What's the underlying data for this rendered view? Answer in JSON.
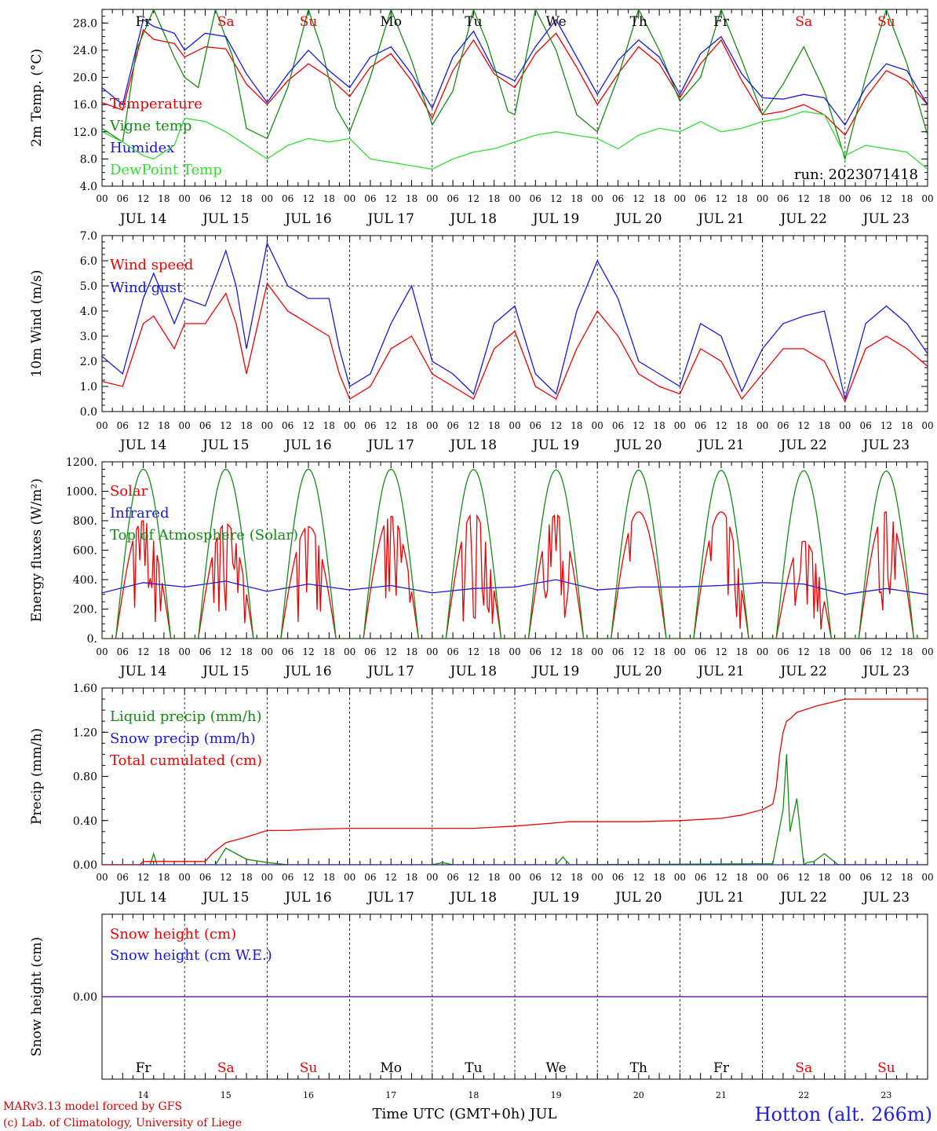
{
  "colors": {
    "red": "#ee0000",
    "green": "#148c14",
    "blue": "#1818e0",
    "lightgreen": "#33dd33",
    "purple": "#6a1a9a",
    "weekend": "#ee0000",
    "weekday": "#000000"
  },
  "x_axis": {
    "hour_labels": [
      "00",
      "06",
      "12",
      "18"
    ],
    "final_hour_label": "00",
    "day_labels": [
      "JUL 14",
      "JUL 15",
      "JUL 16",
      "JUL 17",
      "JUL 18",
      "JUL 19",
      "JUL 20",
      "JUL 21",
      "JUL 22",
      "JUL 23"
    ],
    "weekdays": [
      "Fr",
      "Sa",
      "Su",
      "Mo",
      "Tu",
      "We",
      "Th",
      "Fr",
      "Sa",
      "Su"
    ],
    "weekend_flags": [
      false,
      true,
      true,
      false,
      false,
      false,
      false,
      false,
      true,
      true
    ],
    "day_numbers": [
      "14",
      "15",
      "16",
      "17",
      "18",
      "19",
      "20",
      "21",
      "22",
      "23"
    ],
    "title": "Time UTC (GMT+0h) JUL"
  },
  "run_label": "run: 2023071418",
  "footer": {
    "credit_line1": "MARv3.13 model forced by GFS",
    "credit_line2": "(c) Lab. of Climatology, University of Liege",
    "station": "Hotton (alt. 266m)"
  },
  "chart_data": [
    {
      "id": "temp",
      "type": "line",
      "ylabel": "2m Temp. (°C)",
      "ylim": [
        4,
        30
      ],
      "y_ticks": [
        4,
        8,
        12,
        16,
        20,
        24,
        28
      ],
      "y_tick_labels": [
        "4.0",
        "8.0",
        "12.0",
        "16.0",
        "20.0",
        "24.0",
        "28.0"
      ],
      "series": [
        {
          "name": "Temperature",
          "color": "red",
          "x": [
            0,
            6,
            12,
            15,
            21,
            24,
            30,
            36,
            42,
            48,
            54,
            60,
            66,
            72,
            78,
            84,
            90,
            96,
            102,
            108,
            114,
            120,
            126,
            132,
            138,
            144,
            150,
            156,
            162,
            168,
            174,
            180,
            186,
            192,
            198,
            204,
            210,
            216,
            222,
            228,
            234,
            240
          ],
          "y": [
            16.3,
            15.2,
            27.0,
            25.6,
            25.0,
            23.0,
            24.5,
            24.2,
            19.0,
            16.0,
            19.5,
            22.0,
            20.0,
            17.2,
            21.5,
            23.5,
            19.5,
            14.0,
            21.0,
            25.5,
            20.5,
            18.5,
            23.5,
            26.5,
            21.5,
            16.0,
            20.5,
            24.5,
            22.0,
            17.0,
            22.0,
            25.5,
            19.5,
            14.5,
            15.0,
            16.0,
            14.5,
            11.5,
            17.0,
            21.0,
            19.5,
            16.0
          ]
        },
        {
          "name": "Vigne temp",
          "color": "green",
          "x": [
            0,
            6,
            10,
            15,
            21,
            24,
            28,
            33,
            38,
            42,
            48,
            54,
            60,
            64,
            68,
            72,
            78,
            84,
            90,
            96,
            102,
            108,
            112,
            118,
            120,
            126,
            132,
            138,
            144,
            150,
            156,
            162,
            168,
            174,
            180,
            186,
            192,
            198,
            204,
            210,
            216,
            222,
            228,
            234,
            240
          ],
          "y": [
            12.5,
            10.5,
            24.0,
            30.0,
            23.0,
            20.0,
            18.5,
            30.0,
            23.0,
            12.5,
            11.0,
            18.5,
            30.0,
            24.0,
            15.5,
            12.0,
            20.0,
            30.0,
            22.5,
            13.0,
            18.0,
            30.0,
            25.0,
            15.0,
            14.5,
            30.0,
            24.0,
            14.5,
            12.0,
            20.0,
            30.0,
            24.0,
            16.5,
            20.0,
            30.0,
            22.5,
            14.5,
            19.0,
            24.5,
            18.0,
            8.0,
            20.0,
            30.0,
            22.0,
            11.5
          ]
        },
        {
          "name": "Humidex",
          "color": "blue",
          "x": [
            0,
            6,
            12,
            15,
            21,
            24,
            30,
            36,
            42,
            48,
            54,
            60,
            66,
            72,
            78,
            84,
            90,
            96,
            102,
            108,
            114,
            120,
            126,
            132,
            138,
            144,
            150,
            156,
            162,
            168,
            174,
            180,
            186,
            192,
            198,
            204,
            210,
            216,
            222,
            228,
            234,
            240
          ],
          "y": [
            18.5,
            16.0,
            28.5,
            27.5,
            26.5,
            24.0,
            26.5,
            26.0,
            20.5,
            16.3,
            20.5,
            24.0,
            21.0,
            18.5,
            23.0,
            24.5,
            20.5,
            15.5,
            23.0,
            26.8,
            21.0,
            19.5,
            24.5,
            28.5,
            23.0,
            17.5,
            22.5,
            25.5,
            23.0,
            17.5,
            23.5,
            26.0,
            20.5,
            17.0,
            16.8,
            17.5,
            17.0,
            13.0,
            18.5,
            22.0,
            21.0,
            16.0
          ]
        },
        {
          "name": "DewPoint Temp",
          "color": "lightgreen",
          "x": [
            0,
            6,
            12,
            15,
            21,
            24,
            30,
            36,
            42,
            48,
            54,
            60,
            66,
            72,
            78,
            84,
            90,
            96,
            102,
            108,
            114,
            120,
            126,
            132,
            138,
            144,
            150,
            156,
            162,
            168,
            174,
            180,
            186,
            192,
            198,
            204,
            210,
            216,
            222,
            228,
            234,
            240
          ],
          "y": [
            12.0,
            10.5,
            8.5,
            8.0,
            10.0,
            14.0,
            13.5,
            12.0,
            10.0,
            8.0,
            10.0,
            11.0,
            10.5,
            11.0,
            8.0,
            7.5,
            7.0,
            6.5,
            8.0,
            9.0,
            9.5,
            10.5,
            11.5,
            12.0,
            11.5,
            11.0,
            9.5,
            11.5,
            12.5,
            12.0,
            13.5,
            12.0,
            12.5,
            13.5,
            14.0,
            15.0,
            14.5,
            8.5,
            10.0,
            9.5,
            9.0,
            6.5
          ]
        }
      ]
    },
    {
      "id": "wind",
      "type": "line",
      "ylabel": "10m Wind (m/s)",
      "ylim": [
        0,
        7
      ],
      "y_ticks": [
        0,
        1,
        2,
        3,
        4,
        5,
        6,
        7
      ],
      "y_tick_labels": [
        "0.0",
        "1.0",
        "2.0",
        "3.0",
        "4.0",
        "5.0",
        "6.0",
        "7.0"
      ],
      "reference_line": 5,
      "series": [
        {
          "name": "Wind speed",
          "color": "red",
          "x": [
            0,
            6,
            12,
            15,
            21,
            24,
            30,
            36,
            39,
            42,
            48,
            54,
            60,
            66,
            69,
            72,
            78,
            84,
            90,
            96,
            102,
            108,
            114,
            120,
            126,
            132,
            138,
            144,
            150,
            156,
            162,
            168,
            174,
            180,
            186,
            192,
            198,
            204,
            210,
            216,
            222,
            228,
            234,
            240
          ],
          "y": [
            1.2,
            1.0,
            3.5,
            3.8,
            2.5,
            3.5,
            3.5,
            4.7,
            3.5,
            1.5,
            5.1,
            4.0,
            3.5,
            3.0,
            1.5,
            0.5,
            1.0,
            2.5,
            3.0,
            1.5,
            1.0,
            0.5,
            2.5,
            3.2,
            1.0,
            0.5,
            2.5,
            4.0,
            3.0,
            1.5,
            1.0,
            0.7,
            2.5,
            2.0,
            0.5,
            1.5,
            2.5,
            2.5,
            2.0,
            0.4,
            2.5,
            3.0,
            2.5,
            1.8
          ]
        },
        {
          "name": "Wind gust",
          "color": "blue",
          "x": [
            0,
            6,
            12,
            15,
            21,
            24,
            30,
            36,
            39,
            42,
            48,
            54,
            60,
            66,
            69,
            72,
            78,
            84,
            90,
            96,
            102,
            108,
            114,
            120,
            126,
            132,
            138,
            144,
            150,
            156,
            162,
            168,
            174,
            180,
            186,
            192,
            198,
            204,
            210,
            216,
            222,
            228,
            234,
            240
          ],
          "y": [
            2.2,
            1.5,
            4.5,
            5.5,
            3.5,
            4.5,
            4.2,
            6.4,
            5.0,
            2.5,
            6.7,
            5.0,
            4.5,
            4.5,
            2.5,
            1.0,
            1.5,
            3.5,
            5.0,
            2.0,
            1.5,
            0.7,
            3.5,
            4.2,
            1.5,
            0.7,
            4.0,
            6.0,
            4.5,
            2.0,
            1.5,
            1.0,
            3.5,
            3.0,
            0.8,
            2.5,
            3.5,
            3.8,
            4.0,
            0.5,
            3.5,
            4.2,
            3.5,
            2.3
          ]
        }
      ]
    },
    {
      "id": "energy",
      "type": "line",
      "ylabel": "Energy fluxes (W/m²)",
      "ylim": [
        0,
        1200
      ],
      "y_ticks": [
        0,
        200,
        400,
        600,
        800,
        1000,
        1200
      ],
      "y_tick_labels": [
        "0.",
        "200.",
        "400.",
        "600.",
        "800.",
        "1000.",
        "1200."
      ],
      "series": [
        {
          "name": "Solar",
          "color": "red",
          "sunrise_hour": 4,
          "sunset_hour": 20,
          "daily_peak": [
            800,
            780,
            760,
            830,
            850,
            840,
            860,
            860,
            660,
            860
          ]
        },
        {
          "name": "Infrared",
          "color": "blue",
          "x": [
            0,
            12,
            24,
            36,
            48,
            60,
            72,
            84,
            96,
            108,
            120,
            132,
            144,
            156,
            168,
            180,
            192,
            204,
            216,
            228,
            240
          ],
          "y": [
            310,
            380,
            350,
            390,
            320,
            370,
            330,
            360,
            310,
            340,
            350,
            400,
            330,
            350,
            350,
            360,
            380,
            370,
            300,
            340,
            300
          ]
        },
        {
          "name": "Top of Atmosphere (Solar)",
          "color": "green",
          "sunrise_hour": 4,
          "sunset_hour": 20,
          "daily_peak": [
            1150,
            1150,
            1150,
            1150,
            1148,
            1146,
            1144,
            1142,
            1140,
            1138
          ]
        }
      ]
    },
    {
      "id": "precip",
      "type": "line",
      "ylabel": "Precip (mm/h)",
      "ylim": [
        0,
        1.6
      ],
      "y_ticks": [
        0,
        0.4,
        0.8,
        1.2,
        1.6
      ],
      "y_tick_labels": [
        "0.00",
        "0.40",
        "0.80",
        "1.20",
        "1.60"
      ],
      "series": [
        {
          "name": "Liquid precip (mm/h)",
          "color": "green",
          "x": [
            0,
            14,
            15,
            16,
            33,
            36,
            42,
            48,
            54,
            96,
            99,
            102,
            132,
            134,
            136,
            195,
            198,
            199,
            200,
            202,
            204,
            205,
            207,
            210,
            214,
            216,
            240
          ],
          "y": [
            0,
            0,
            0.1,
            0,
            0,
            0.15,
            0.05,
            0.02,
            0,
            0,
            0.02,
            0,
            0,
            0.07,
            0,
            0.01,
            0.5,
            1.0,
            0.3,
            0.6,
            0,
            0.02,
            0.03,
            0.1,
            0,
            0,
            0
          ]
        },
        {
          "name": "Snow precip (mm/h)",
          "color": "blue",
          "x": [
            0,
            240
          ],
          "y": [
            0,
            0
          ]
        },
        {
          "name": "Total cumulated (cm)",
          "color": "red",
          "x": [
            0,
            11,
            12,
            30,
            32,
            36,
            42,
            48,
            54,
            60,
            72,
            78,
            90,
            108,
            120,
            132,
            136,
            144,
            156,
            168,
            180,
            186,
            192,
            195,
            196,
            197,
            198,
            199,
            200,
            202,
            204,
            208,
            216,
            228,
            240
          ],
          "y": [
            0,
            0,
            0.03,
            0.03,
            0.1,
            0.2,
            0.25,
            0.31,
            0.31,
            0.32,
            0.33,
            0.33,
            0.33,
            0.33,
            0.35,
            0.38,
            0.39,
            0.39,
            0.39,
            0.4,
            0.42,
            0.45,
            0.5,
            0.55,
            0.7,
            1.0,
            1.2,
            1.3,
            1.32,
            1.38,
            1.4,
            1.44,
            1.5,
            1.5,
            1.5
          ]
        }
      ]
    },
    {
      "id": "snow",
      "type": "line",
      "ylabel": "Snow height (cm)",
      "ylim": [
        -1,
        1
      ],
      "y_ticks": [
        0
      ],
      "y_tick_labels": [
        "0.00"
      ],
      "series": [
        {
          "name": "Snow height (cm)",
          "color": "red",
          "x": [
            0,
            240
          ],
          "y": [
            0,
            0
          ]
        },
        {
          "name": "Snow height (cm W.E.)",
          "color": "blue",
          "x": [
            0,
            240
          ],
          "y": [
            0,
            0
          ]
        }
      ]
    }
  ]
}
